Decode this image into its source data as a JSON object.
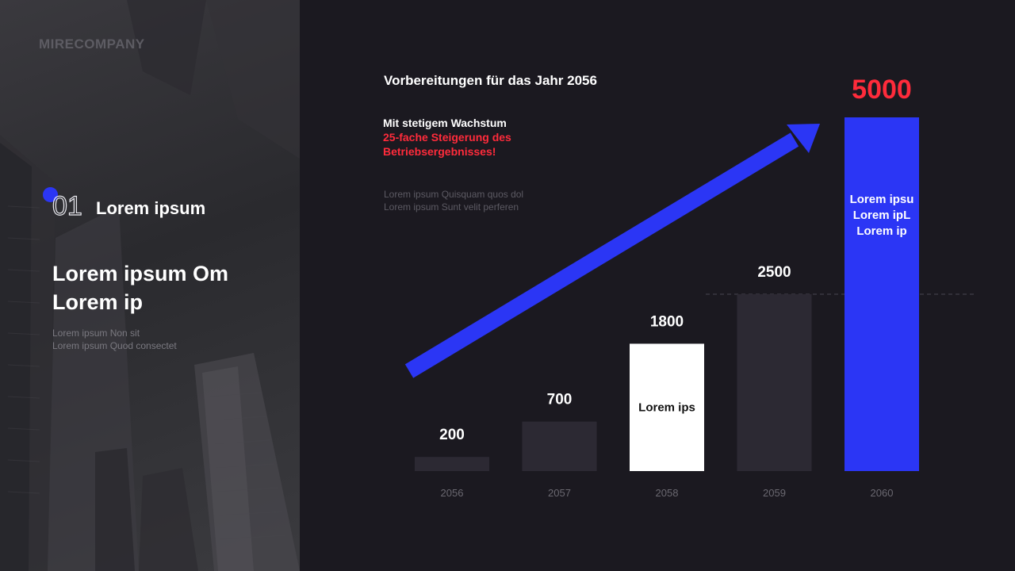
{
  "brand": "MIRECOMPANY",
  "left": {
    "section_number": "01",
    "section_title": "Lorem ipsum",
    "headline": "Lorem ipsum Om Lorem ip",
    "subtext": [
      "Lorem ipsum Non sit",
      "Lorem ipsum Quod consectet"
    ]
  },
  "right": {
    "title": "Vorbereitungen für das Jahr 2056",
    "growth_line1": "Mit stetigem Wachstum",
    "growth_line2": "25-fache Steigerung des Betriebsergebnisses!",
    "lorem_lines": [
      "Lorem ipsum Quisquam quos dol",
      "Lorem ipsum Sunt velit perferen"
    ]
  },
  "colors": {
    "background": "#1b1920",
    "bar_default": "#2c2933",
    "bar_highlight_white": "#ffffff",
    "bar_highlight_blue": "#2b36f5",
    "accent_red": "#ff2b3b",
    "arrow": "#2b36f5"
  },
  "chart_data": {
    "type": "bar",
    "categories": [
      "2056",
      "2057",
      "2058",
      "2059",
      "2060"
    ],
    "values": [
      200,
      700,
      1800,
      2500,
      5000
    ],
    "value_labels": [
      "200",
      "700",
      "1800",
      "2500",
      "5000"
    ],
    "bar_styles": [
      "default",
      "default",
      "white",
      "default",
      "blue"
    ],
    "bar_inner_labels": [
      "",
      "",
      "Lorem ips",
      "",
      "Lorem ipsu\nLorem ipL\nLorem ip"
    ],
    "reference_line_value": 2500,
    "ylim": [
      0,
      5000
    ],
    "grid": false,
    "legend": "none",
    "trend_arrow": true,
    "xlabel": "",
    "ylabel": ""
  }
}
